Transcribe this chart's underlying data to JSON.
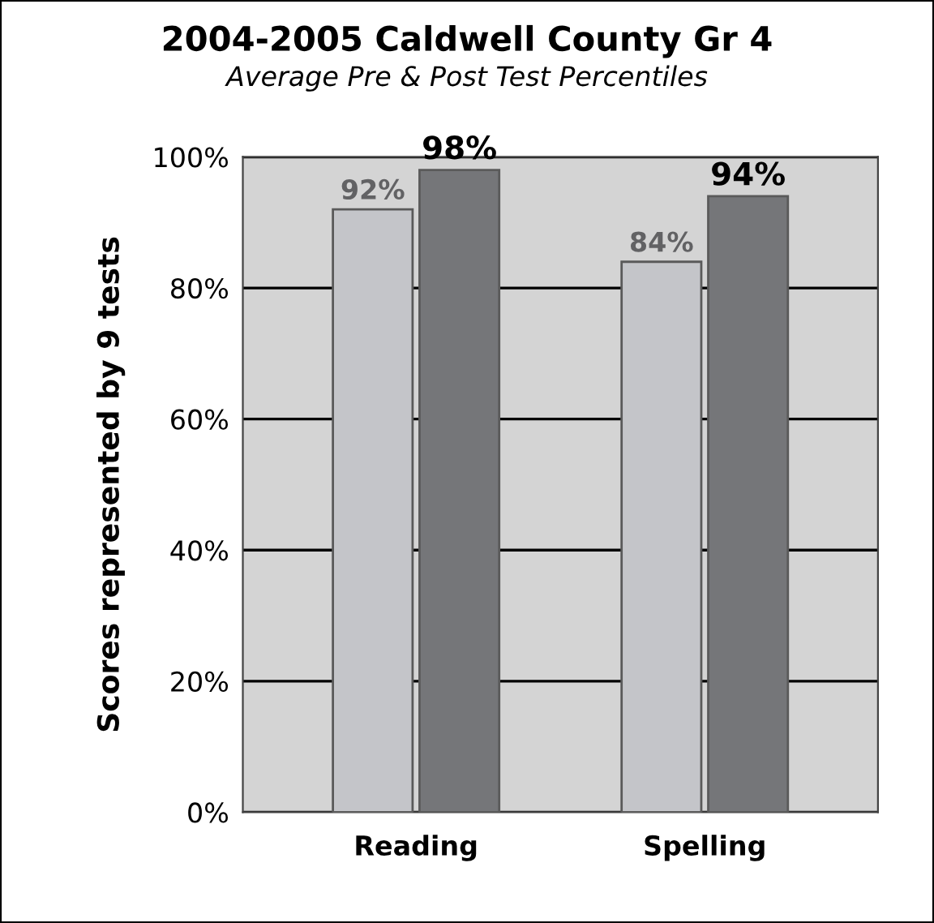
{
  "chart_data": {
    "type": "bar",
    "title": "2004-2005 Caldwell County Gr 4",
    "subtitle": "Average Pre & Post Test Percentiles",
    "ylabel": "Scores represented by 9 tests",
    "categories": [
      "Reading",
      "Spelling"
    ],
    "series": [
      {
        "color": "#c4c5c9",
        "values": [
          92,
          84
        ],
        "value_labels": [
          "92%",
          "84%"
        ]
      },
      {
        "color": "#757679",
        "values": [
          98,
          94
        ],
        "value_labels": [
          "98%",
          "94%"
        ]
      }
    ],
    "ylim": [
      0,
      100
    ],
    "yticks": [
      {
        "value": 0,
        "label": "0%"
      },
      {
        "value": 20,
        "label": "20%"
      },
      {
        "value": 40,
        "label": "40%"
      },
      {
        "value": 60,
        "label": "60%"
      },
      {
        "value": 80,
        "label": "80%"
      },
      {
        "value": 100,
        "label": "100%"
      }
    ],
    "grid": "y",
    "legend": false
  }
}
